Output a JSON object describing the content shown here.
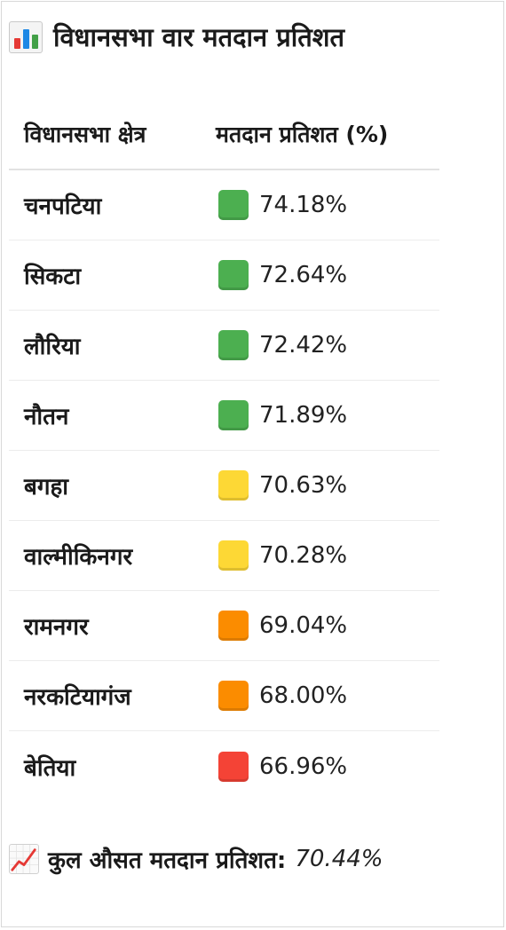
{
  "title": "विधानसभा वार मतदान प्रतिशत",
  "title_icon": "bar-chart-icon",
  "table": {
    "headers": [
      "विधानसभा क्षेत्र",
      "मतदान प्रतिशत (%)"
    ],
    "rows": [
      {
        "name": "चनपटिया",
        "value": "74.18%",
        "color": "#4caf50"
      },
      {
        "name": "सिकटा",
        "value": "72.64%",
        "color": "#4caf50"
      },
      {
        "name": "लौरिया",
        "value": "72.42%",
        "color": "#4caf50"
      },
      {
        "name": "नौतन",
        "value": "71.89%",
        "color": "#4caf50"
      },
      {
        "name": "बगहा",
        "value": "70.63%",
        "color": "#fdd835"
      },
      {
        "name": "वाल्मीकिनगर",
        "value": "70.28%",
        "color": "#fdd835"
      },
      {
        "name": "रामनगर",
        "value": "69.04%",
        "color": "#fb8c00"
      },
      {
        "name": "नरकटियागंज",
        "value": "68.00%",
        "color": "#fb8c00"
      },
      {
        "name": "बेतिया",
        "value": "66.96%",
        "color": "#f44336"
      }
    ]
  },
  "footer": {
    "icon": "trend-up-icon",
    "label": "कुल औसत मतदान प्रतिशत:",
    "value": "70.44%"
  }
}
